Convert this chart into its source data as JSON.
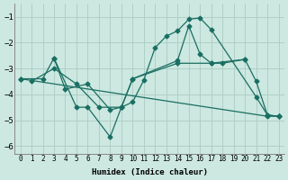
{
  "xlabel": "Humidex (Indice chaleur)",
  "background_color": "#cce8e0",
  "grid_color": "#aaccc4",
  "line_color": "#1a6e62",
  "xlim": [
    -0.5,
    23.5
  ],
  "ylim": [
    -6.3,
    -0.5
  ],
  "yticks": [
    -6,
    -5,
    -4,
    -3,
    -2,
    -1
  ],
  "xticks": [
    0,
    1,
    2,
    3,
    4,
    5,
    6,
    7,
    8,
    9,
    10,
    11,
    12,
    13,
    14,
    15,
    16,
    17,
    18,
    19,
    20,
    21,
    22,
    23
  ],
  "curves": [
    {
      "x": [
        0,
        2,
        3,
        5,
        6,
        8,
        9,
        10,
        11,
        12,
        13,
        14,
        15,
        16,
        17,
        21,
        22,
        23
      ],
      "y": [
        -3.4,
        -3.4,
        -2.6,
        -4.5,
        -4.5,
        -5.65,
        -4.5,
        -4.3,
        -3.45,
        -2.2,
        -1.75,
        -1.55,
        -1.1,
        -1.05,
        -1.5,
        -4.1,
        -4.8,
        -4.85
      ]
    },
    {
      "x": [
        0,
        22,
        23
      ],
      "y": [
        -3.4,
        -4.85,
        -4.85
      ]
    },
    {
      "x": [
        1,
        3,
        5,
        7,
        9,
        10,
        14,
        17,
        18,
        20,
        21,
        22,
        23
      ],
      "y": [
        -3.5,
        -3.0,
        -3.6,
        -4.5,
        -4.5,
        -3.4,
        -2.8,
        -2.8,
        -2.8,
        -2.65,
        -3.5,
        -4.8,
        -4.85
      ]
    },
    {
      "x": [
        3,
        4,
        6,
        8,
        9,
        10,
        14,
        15,
        16,
        17,
        20
      ],
      "y": [
        -2.6,
        -3.8,
        -3.6,
        -4.6,
        -4.5,
        -3.4,
        -2.7,
        -1.35,
        -2.45,
        -2.8,
        -2.65
      ]
    }
  ],
  "marker": "D",
  "markersize": 2.5,
  "linewidth": 0.9
}
